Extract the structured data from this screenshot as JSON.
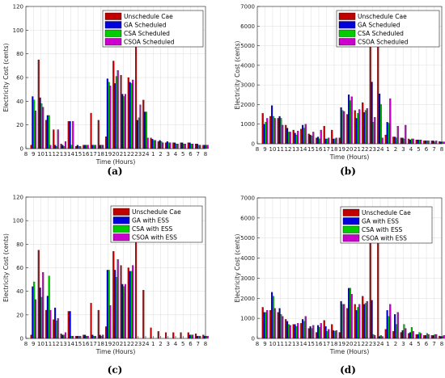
{
  "chart_data": [
    {
      "type": "bar",
      "panel_label": "(a)",
      "ylabel": "Electricity Cost (cents)",
      "xlabel": "Time (Hours)",
      "ylim": [
        0,
        120
      ],
      "yticks": [
        0,
        20,
        40,
        60,
        80,
        100,
        120
      ],
      "grid": true,
      "legend_position": "top-right",
      "categories": [
        "8",
        "9",
        "10",
        "11",
        "12",
        "13",
        "14",
        "15",
        "16",
        "17",
        "18",
        "19",
        "20",
        "21",
        "22",
        "23",
        "24",
        "1",
        "2",
        "3",
        "4",
        "5",
        "6",
        "7",
        "8"
      ],
      "series": [
        {
          "name": "Unschedule Cae",
          "color": "#c00000",
          "values": [
            0,
            3,
            75,
            24,
            16,
            4,
            23,
            2,
            3,
            30,
            24,
            10,
            74,
            62,
            60,
            105,
            41,
            9,
            6,
            5,
            5,
            5,
            5,
            4,
            3
          ]
        },
        {
          "name": "GA Scheduled",
          "color": "#0000dd",
          "values": [
            0,
            44,
            43,
            28,
            3,
            3,
            23,
            3,
            3,
            3,
            3,
            59,
            55,
            46,
            56,
            24,
            31,
            8,
            7,
            6,
            5,
            5,
            5,
            4,
            3
          ]
        },
        {
          "name": "CSA Scheduled",
          "color": "#00cc00",
          "values": [
            0,
            41,
            38,
            28,
            2,
            2,
            3,
            2,
            3,
            3,
            3,
            56,
            61,
            44,
            55,
            26,
            31,
            7,
            6,
            5,
            4,
            4,
            4,
            3,
            3
          ]
        },
        {
          "name": "CSOA Scheduled",
          "color": "#cc00cc",
          "values": [
            0,
            32,
            35,
            3,
            16,
            6,
            23,
            2,
            3,
            3,
            3,
            53,
            66,
            46,
            58,
            37,
            9,
            7,
            5,
            5,
            4,
            4,
            4,
            3,
            3
          ]
        }
      ]
    },
    {
      "type": "bar",
      "panel_label": "(b)",
      "ylabel": "Electricity Cost (cents)",
      "xlabel": "Time (Hours)",
      "ylim": [
        0,
        7000
      ],
      "yticks": [
        0,
        1000,
        2000,
        3000,
        4000,
        5000,
        6000,
        7000
      ],
      "grid": true,
      "legend_position": "top-right",
      "categories": [
        "8",
        "9",
        "10",
        "11",
        "12",
        "13",
        "14",
        "15",
        "16",
        "17",
        "18",
        "19",
        "20",
        "21",
        "22",
        "23",
        "24",
        "1",
        "2",
        "3",
        "4",
        "5",
        "6",
        "7",
        "8"
      ],
      "series": [
        {
          "name": "Unschedule Cae",
          "color": "#c00000",
          "values": [
            0,
            1550,
            1400,
            1300,
            950,
            700,
            750,
            500,
            300,
            900,
            700,
            300,
            1500,
            1700,
            2100,
            5300,
            6200,
            450,
            350,
            300,
            250,
            200,
            150,
            150,
            120
          ]
        },
        {
          "name": "GA Scheduled",
          "color": "#0000dd",
          "values": [
            0,
            1000,
            1950,
            1400,
            800,
            550,
            950,
            450,
            350,
            250,
            250,
            1850,
            2500,
            1300,
            1600,
            3150,
            2550,
            1100,
            350,
            300,
            200,
            200,
            150,
            150,
            100
          ]
        },
        {
          "name": "CSA Scheduled",
          "color": "#00cc00",
          "values": [
            0,
            1100,
            1400,
            1300,
            600,
            450,
            800,
            400,
            250,
            250,
            250,
            1700,
            2200,
            1550,
            1700,
            1100,
            2000,
            1050,
            300,
            250,
            250,
            200,
            150,
            100,
            100
          ]
        },
        {
          "name": "CSOA Scheduled",
          "color": "#cc00cc",
          "values": [
            0,
            1300,
            1300,
            950,
            600,
            650,
            1000,
            600,
            700,
            300,
            300,
            1650,
            2400,
            1750,
            1800,
            1350,
            300,
            2300,
            900,
            950,
            250,
            200,
            150,
            150,
            100
          ]
        }
      ]
    },
    {
      "type": "bar",
      "panel_label": "(c)",
      "ylabel": "Electricity Cost (cents)",
      "xlabel": "Time (Hours)",
      "ylim": [
        0,
        120
      ],
      "yticks": [
        0,
        20,
        40,
        60,
        80,
        100,
        120
      ],
      "grid": true,
      "legend_position": "top-right",
      "categories": [
        "8",
        "9",
        "10",
        "11",
        "12",
        "13",
        "14",
        "15",
        "16",
        "17",
        "18",
        "19",
        "20",
        "21",
        "22",
        "23",
        "24",
        "1",
        "2",
        "3",
        "4",
        "5",
        "6",
        "7",
        "8"
      ],
      "series": [
        {
          "name": "Unschedule Cae",
          "color": "#c00000",
          "values": [
            0,
            3,
            75,
            24,
            16,
            4,
            23,
            2,
            3,
            30,
            24,
            10,
            74,
            62,
            60,
            105,
            41,
            9,
            6,
            5,
            5,
            5,
            5,
            4,
            3
          ]
        },
        {
          "name": "GA with ESS",
          "color": "#0000dd",
          "values": [
            0,
            44,
            43,
            36,
            26,
            3,
            23,
            2,
            3,
            3,
            3,
            58,
            58,
            46,
            57,
            0,
            0,
            0,
            0,
            0,
            0,
            0,
            3,
            2,
            2
          ]
        },
        {
          "name": "CSA with ESS",
          "color": "#00cc00",
          "values": [
            0,
            48,
            35,
            53,
            15,
            3,
            2,
            2,
            2,
            2,
            2,
            58,
            52,
            44,
            57,
            0,
            0,
            0,
            0,
            0,
            0,
            0,
            3,
            2,
            2
          ]
        },
        {
          "name": "CSOA with ESS",
          "color": "#cc00cc",
          "values": [
            0,
            33,
            56,
            24,
            17,
            5,
            2,
            2,
            2,
            2,
            3,
            28,
            67,
            46,
            62,
            0,
            0,
            0,
            0,
            0,
            0,
            0,
            3,
            2,
            2
          ]
        }
      ]
    },
    {
      "type": "bar",
      "panel_label": "(d)",
      "ylabel": "Electricity Cost (cents)",
      "xlabel": "Time (Hours)",
      "ylim": [
        0,
        7000
      ],
      "yticks": [
        0,
        1000,
        2000,
        3000,
        4000,
        5000,
        6000,
        7000
      ],
      "grid": true,
      "legend_position": "top-right",
      "categories": [
        "8",
        "9",
        "10",
        "11",
        "12",
        "13",
        "14",
        "15",
        "16",
        "17",
        "18",
        "19",
        "20",
        "21",
        "22",
        "23",
        "24",
        "1",
        "2",
        "3",
        "4",
        "5",
        "6",
        "7",
        "8"
      ],
      "series": [
        {
          "name": "Unschedule Cae",
          "color": "#c00000",
          "values": [
            0,
            1550,
            1400,
            1300,
            950,
            700,
            750,
            500,
            300,
            900,
            700,
            300,
            1500,
            1700,
            2100,
            5300,
            6200,
            450,
            350,
            300,
            250,
            200,
            150,
            150,
            120
          ]
        },
        {
          "name": "GA with ESS",
          "color": "#0000dd",
          "values": [
            0,
            1300,
            2300,
            1500,
            850,
            700,
            950,
            600,
            650,
            600,
            400,
            1850,
            2500,
            1400,
            1700,
            1900,
            100,
            1400,
            1200,
            400,
            300,
            200,
            150,
            150,
            100
          ]
        },
        {
          "name": "CSA with ESS",
          "color": "#00cc00",
          "values": [
            0,
            1300,
            2100,
            1200,
            700,
            600,
            850,
            500,
            550,
            350,
            350,
            1700,
            2500,
            1550,
            1750,
            200,
            150,
            1100,
            700,
            700,
            550,
            300,
            250,
            200,
            100
          ]
        },
        {
          "name": "CSOA with ESS",
          "color": "#cc00cc",
          "values": [
            0,
            1400,
            1500,
            1100,
            650,
            750,
            1100,
            650,
            750,
            450,
            400,
            1700,
            2200,
            1700,
            1850,
            150,
            100,
            1700,
            1300,
            500,
            350,
            250,
            200,
            200,
            150
          ]
        }
      ]
    }
  ]
}
